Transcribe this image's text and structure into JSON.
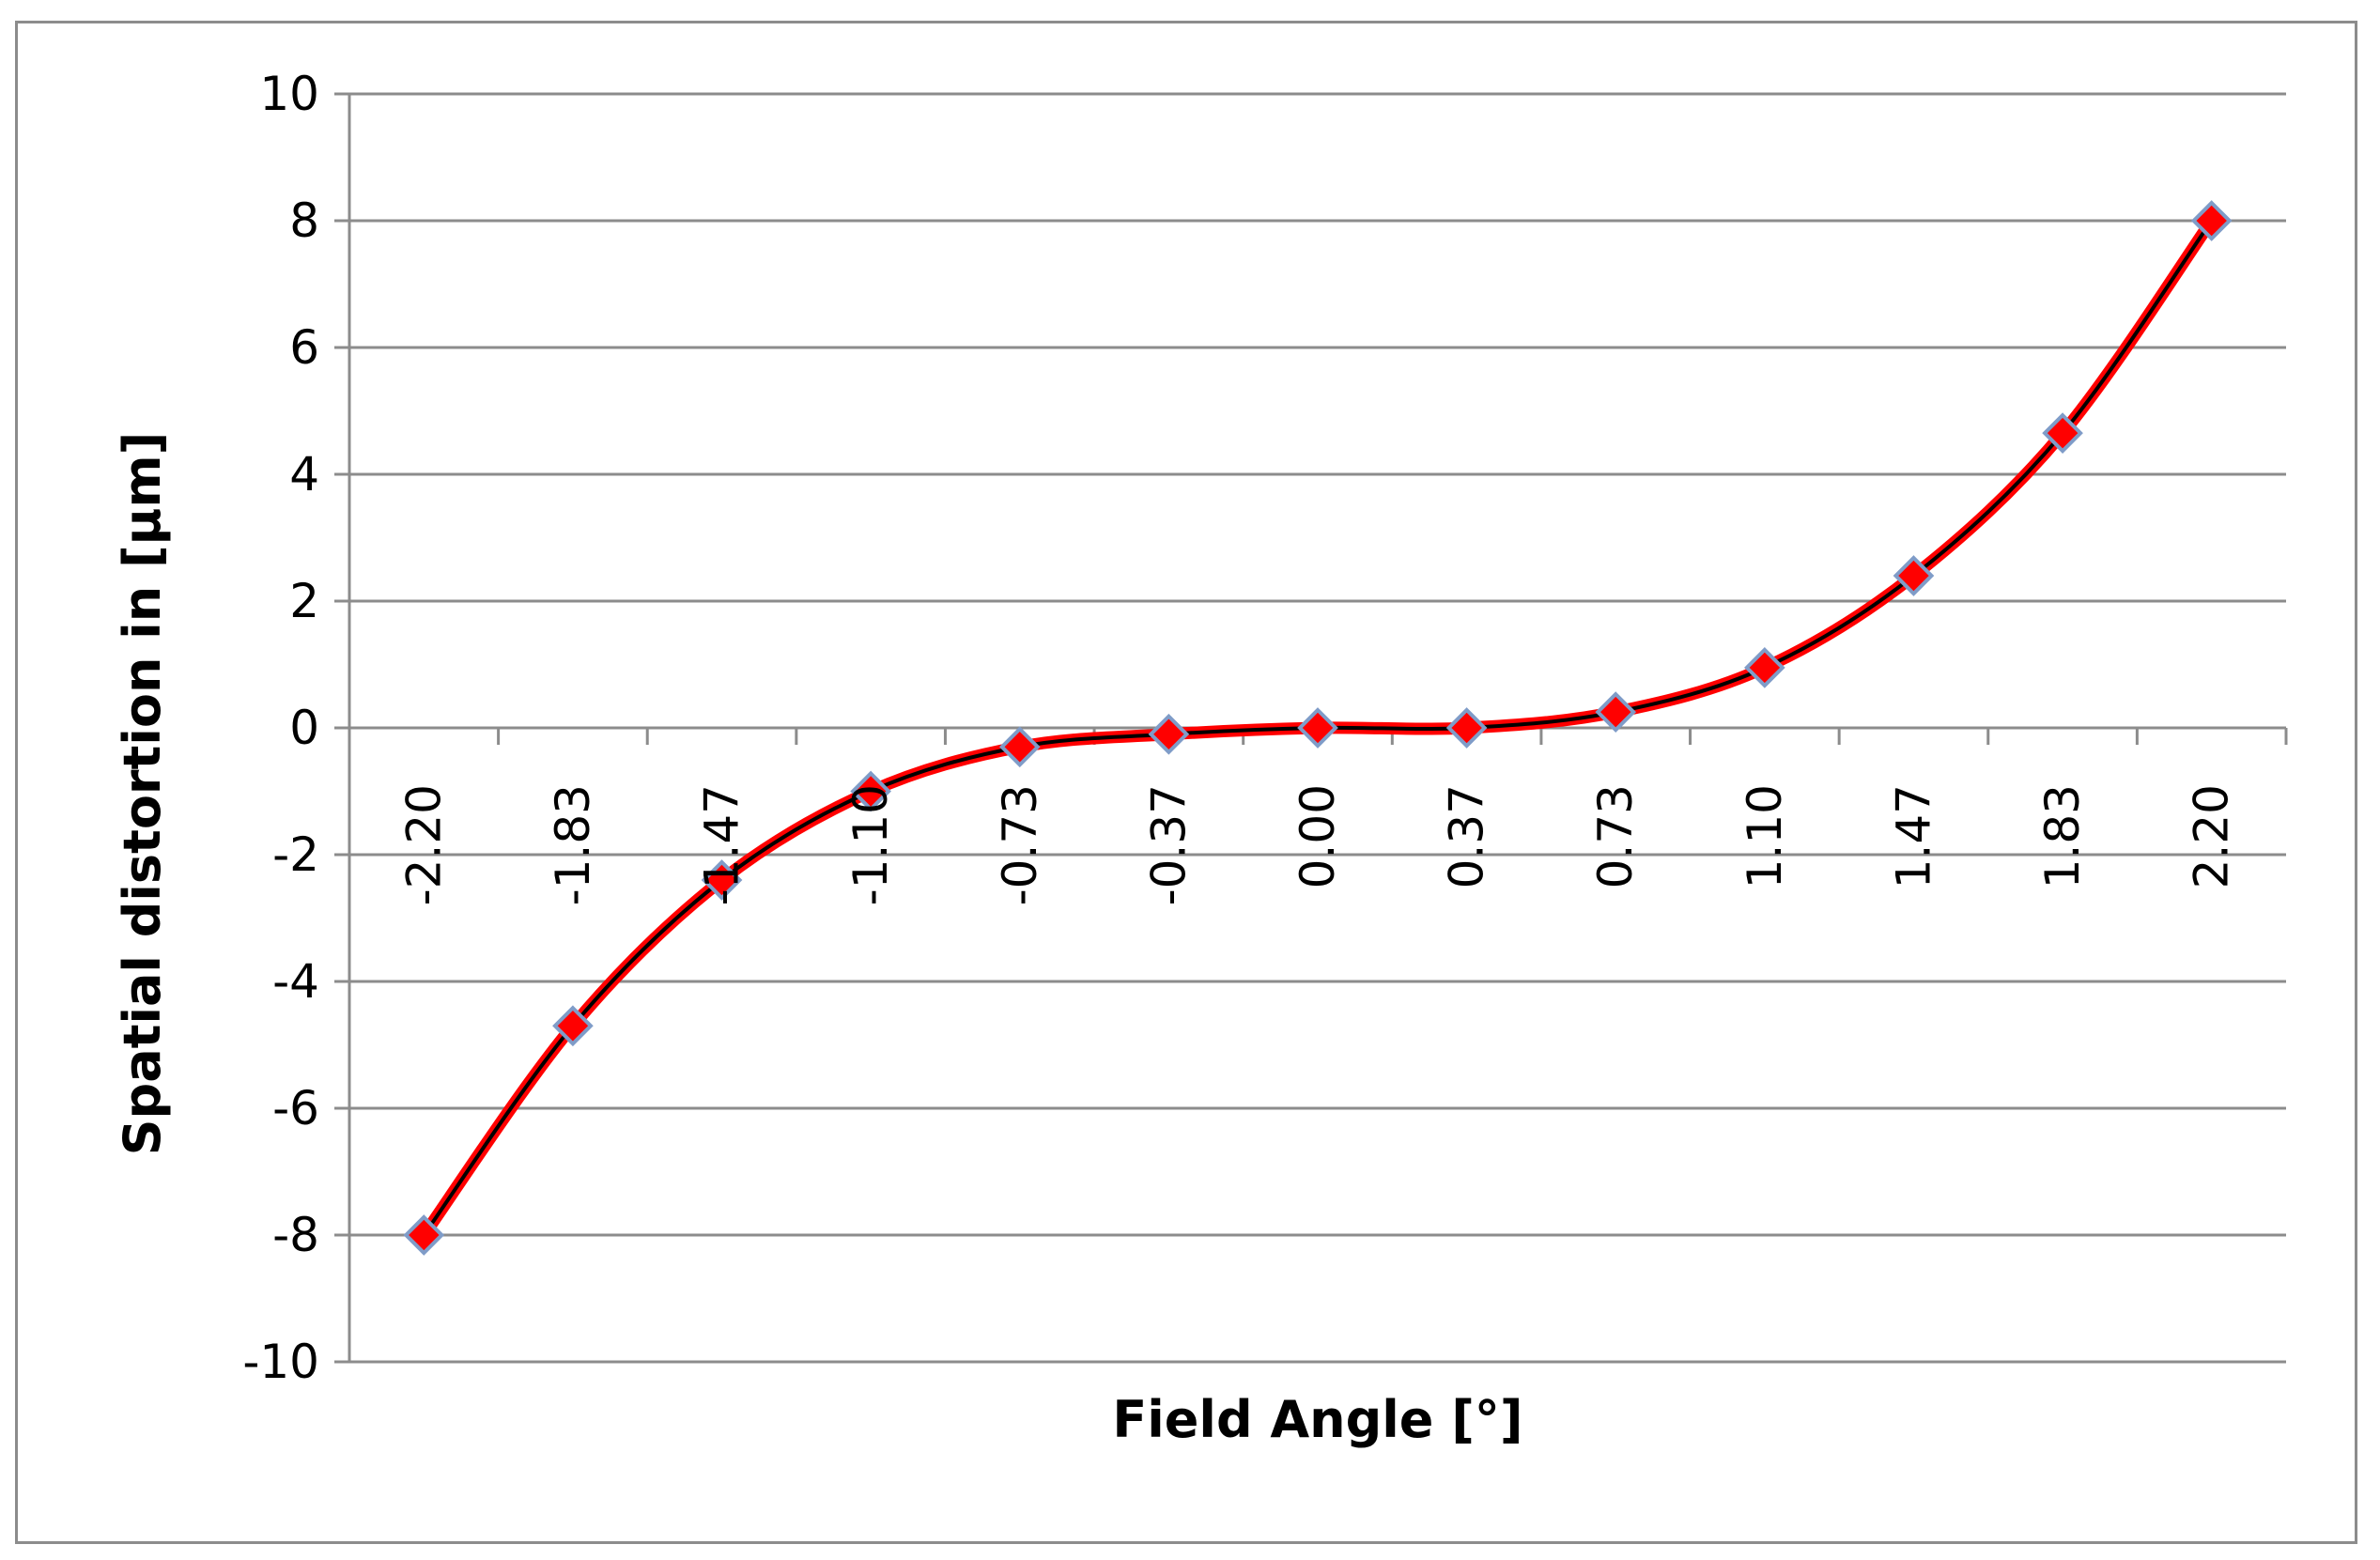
{
  "chart_data": {
    "type": "line",
    "title": "",
    "xlabel": "Field Angle [°]",
    "ylabel": "Spatial distortion in [µm]",
    "categories": [
      "-2.20",
      "-1.83",
      "-1.47",
      "-1.10",
      "-0.73",
      "-0.37",
      "0.00",
      "0.37",
      "0.73",
      "1.10",
      "1.47",
      "1.83",
      "2.20"
    ],
    "series": [
      {
        "values": [
          -8.0,
          -4.7,
          -2.4,
          -1.0,
          -0.3,
          -0.1,
          0.0,
          0.0,
          0.25,
          0.95,
          2.4,
          4.65,
          8.0
        ],
        "line_color": "#ff0000",
        "marker": "diamond",
        "marker_color": "#ff0000",
        "marker_edge_color": "#7f9cc8"
      }
    ],
    "ylim": [
      -10,
      10
    ],
    "yticks": [
      10,
      8,
      6,
      4,
      2,
      0,
      -2,
      -4,
      -6,
      -8,
      -10
    ],
    "grid": true,
    "grid_color": "#8c8c8c",
    "legend": "none"
  }
}
